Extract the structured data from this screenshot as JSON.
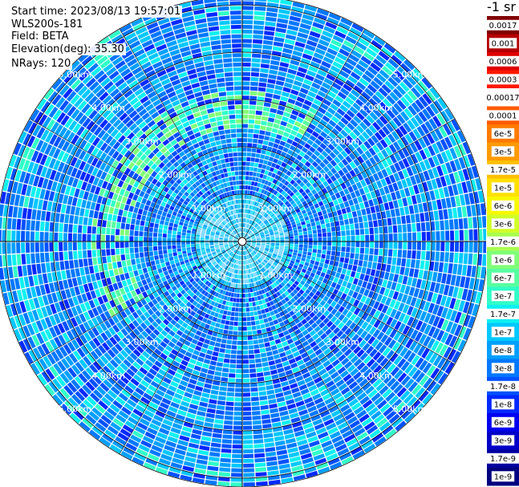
{
  "header": {
    "start_time": "Start time: 2023/08/13 19:57:01",
    "instrument": "WLS200s-181",
    "field": "Field: BETA",
    "elevation": "Elevation(deg): 35.30",
    "nrays": "NRays: 120"
  },
  "units_label": "-1 sr",
  "range_rings": {
    "labels": [
      "1.00km",
      "2.00km",
      "3.00km",
      "4.00km",
      "5.00km"
    ],
    "values_km": [
      1,
      2,
      3,
      4,
      5
    ]
  },
  "colorbar": {
    "labels": [
      "0.0017",
      "0.001",
      "0.0006",
      "0.0003",
      "0.00017",
      "0.0001",
      "6e-5",
      "3e-5",
      "1.7e-5",
      "1e-5",
      "6e-6",
      "3e-6",
      "1.7e-6",
      "1e-6",
      "6e-7",
      "3e-7",
      "1.7e-7",
      "1e-7",
      "6e-8",
      "3e-8",
      "1.7e-8",
      "1e-8",
      "6e-9",
      "3e-9",
      "1.7e-9",
      "1e-9"
    ],
    "colors": [
      "#800000",
      "#b40000",
      "#e00000",
      "#ff1800",
      "#ffffff",
      "#ff5a00",
      "#ff7a00",
      "#ff9a00",
      "#ffc000",
      "#ffe000",
      "#f8f800",
      "#d0ff28",
      "#a8ff50",
      "#80ff78",
      "#58ffa0",
      "#30ffc8",
      "#10f0f0",
      "#00c8ff",
      "#00a0ff",
      "#0078ff",
      "#0050ff",
      "#0028ff",
      "#0000f0",
      "#0000c8",
      "#0000a0",
      "#000080"
    ]
  },
  "colors": {
    "background": "#ffffff",
    "ring_line": "#000000",
    "gate_gap": "#ffffff"
  }
}
